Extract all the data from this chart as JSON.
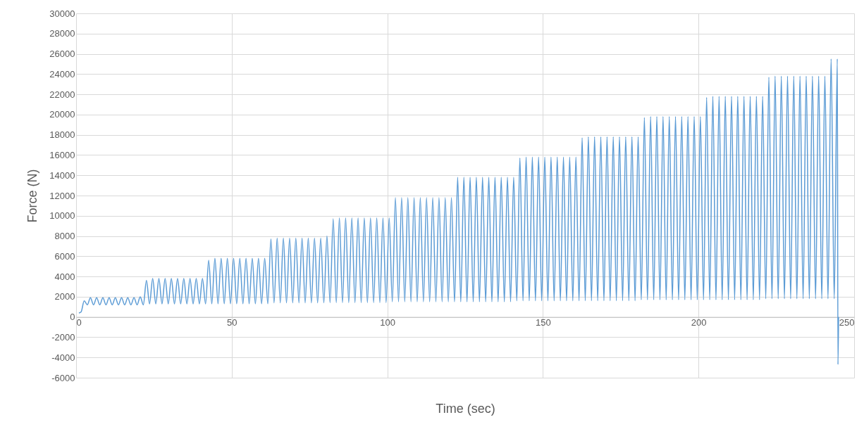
{
  "chart_data": {
    "type": "line",
    "xlabel": "Time (sec)",
    "ylabel": "Force (N)",
    "xlim": [
      0,
      250
    ],
    "xticks": [
      0,
      50,
      100,
      150,
      200,
      250
    ],
    "ylim": [
      -6000,
      30000
    ],
    "yticks": [
      -6000,
      -4000,
      -2000,
      0,
      2000,
      4000,
      6000,
      8000,
      10000,
      12000,
      14000,
      16000,
      18000,
      20000,
      22000,
      24000,
      26000,
      28000,
      30000
    ],
    "grid": true,
    "marker": "none",
    "line_style": "solid",
    "series": [
      {
        "color": "#5b9bd5",
        "x": [
          0.9,
          1.6,
          2.6,
          3.6,
          4.6,
          5.6,
          6.6,
          7.6,
          8.6,
          9.6,
          10.6,
          11.6,
          12.6,
          13.6,
          14.6,
          15.6,
          16.6,
          17.6,
          18.6,
          19.6,
          20.6,
          21.6,
          22.6,
          23.6,
          24.6,
          25.6,
          26.6,
          27.6,
          28.6,
          29.6,
          30.6,
          31.6,
          32.6,
          33.6,
          34.6,
          35.6,
          36.6,
          37.6,
          38.6,
          39.6,
          40.6,
          41.6,
          42.6,
          43.6,
          44.6,
          45.6,
          46.6,
          47.6,
          48.6,
          49.6,
          50.6,
          51.6,
          52.6,
          53.6,
          54.6,
          55.6,
          56.6,
          57.6,
          58.6,
          59.6,
          60.6,
          61.6,
          62.6,
          63.6,
          64.6,
          65.6,
          66.6,
          67.6,
          68.6,
          69.6,
          70.6,
          71.6,
          72.6,
          73.6,
          74.6,
          75.6,
          76.6,
          77.6,
          78.6,
          79.6,
          80.6,
          81.6,
          82.6,
          83.6,
          84.6,
          85.6,
          86.6,
          87.6,
          88.6,
          89.6,
          90.6,
          91.6,
          92.6,
          93.6,
          94.6,
          95.6,
          96.6,
          97.6,
          98.6,
          99.6,
          100.6,
          101.6,
          102.6,
          103.6,
          104.6,
          105.6,
          106.6,
          107.6,
          108.6,
          109.6,
          110.6,
          111.6,
          112.6,
          113.6,
          114.6,
          115.6,
          116.6,
          117.6,
          118.6,
          119.6,
          120.6,
          121.6,
          122.6,
          123.6,
          124.6,
          125.6,
          126.6,
          127.6,
          128.6,
          129.6,
          130.6,
          131.6,
          132.6,
          133.6,
          134.6,
          135.6,
          136.6,
          137.6,
          138.6,
          139.6,
          140.6,
          141.6,
          142.6,
          143.6,
          144.6,
          145.6,
          146.6,
          147.6,
          148.6,
          149.6,
          150.6,
          151.6,
          152.6,
          153.6,
          154.6,
          155.6,
          156.6,
          157.6,
          158.6,
          159.6,
          160.6,
          161.6,
          162.6,
          163.6,
          164.6,
          165.6,
          166.6,
          167.6,
          168.6,
          169.6,
          170.6,
          171.6,
          172.6,
          173.6,
          174.6,
          175.6,
          176.6,
          177.6,
          178.6,
          179.6,
          180.6,
          181.6,
          182.6,
          183.6,
          184.6,
          185.6,
          186.6,
          187.6,
          188.6,
          189.6,
          190.6,
          191.6,
          192.6,
          193.6,
          194.6,
          195.6,
          196.6,
          197.6,
          198.6,
          199.6,
          200.6,
          201.6,
          202.6,
          203.6,
          204.6,
          205.6,
          206.6,
          207.6,
          208.6,
          209.6,
          210.6,
          211.6,
          212.6,
          213.6,
          214.6,
          215.6,
          216.6,
          217.6,
          218.6,
          219.6,
          220.6,
          221.6,
          222.6,
          223.6,
          224.6,
          225.6,
          226.6,
          227.6,
          228.6,
          229.6,
          230.6,
          231.6,
          232.6,
          233.6,
          234.6,
          235.6,
          236.6,
          237.6,
          238.6,
          239.6,
          240.6,
          241.6,
          242.6,
          243.6,
          244.6,
          244.8,
          245.0
        ],
        "values": [
          400,
          500,
          1600,
          1200,
          1900,
          1200,
          1900,
          1200,
          1900,
          1200,
          1900,
          1200,
          1900,
          1200,
          1900,
          1200,
          1900,
          1200,
          1900,
          1200,
          2000,
          1200,
          3600,
          1300,
          3800,
          1300,
          3800,
          1300,
          3800,
          1300,
          3800,
          1300,
          3800,
          1300,
          3800,
          1300,
          3800,
          1300,
          3800,
          1300,
          3800,
          1300,
          5600,
          1300,
          5800,
          1300,
          5800,
          1300,
          5800,
          1300,
          5800,
          1300,
          5800,
          1300,
          5800,
          1300,
          5800,
          1300,
          5800,
          1300,
          5800,
          1300,
          7700,
          1400,
          7800,
          1400,
          7800,
          1400,
          7800,
          1400,
          7800,
          1400,
          7800,
          1400,
          7800,
          1400,
          7800,
          1400,
          7800,
          1400,
          8000,
          1400,
          9700,
          1400,
          9800,
          1400,
          9800,
          1400,
          9800,
          1400,
          9800,
          1400,
          9800,
          1400,
          9800,
          1400,
          9800,
          1400,
          9800,
          1400,
          9800,
          1500,
          11800,
          1500,
          11800,
          1500,
          11800,
          1500,
          11800,
          1500,
          11800,
          1500,
          11800,
          1500,
          11800,
          1500,
          11800,
          1500,
          11800,
          1500,
          11800,
          1500,
          13800,
          1500,
          13800,
          1500,
          13800,
          1500,
          13800,
          1500,
          13800,
          1500,
          13800,
          1500,
          13800,
          1500,
          13800,
          1500,
          13800,
          1500,
          13800,
          1600,
          15700,
          1600,
          15800,
          1600,
          15800,
          1600,
          15800,
          1600,
          15800,
          1600,
          15800,
          1600,
          15800,
          1600,
          15800,
          1600,
          15800,
          1600,
          15800,
          1600,
          17700,
          1600,
          17800,
          1600,
          17800,
          1600,
          17800,
          1600,
          17800,
          1600,
          17800,
          1600,
          17800,
          1600,
          17800,
          1600,
          17800,
          1600,
          17800,
          1700,
          19700,
          1700,
          19800,
          1700,
          19800,
          1700,
          19800,
          1700,
          19800,
          1700,
          19800,
          1700,
          19800,
          1700,
          19800,
          1700,
          19800,
          1700,
          19800,
          1700,
          21700,
          1700,
          21800,
          1700,
          21800,
          1700,
          21800,
          1700,
          21800,
          1700,
          21800,
          1700,
          21800,
          1700,
          21800,
          1700,
          21800,
          1700,
          21800,
          1800,
          23700,
          1800,
          23800,
          1800,
          23800,
          1800,
          23800,
          1800,
          23800,
          1800,
          23800,
          1800,
          23800,
          1800,
          23800,
          1800,
          23800,
          1800,
          23800,
          1800,
          25500,
          1800,
          25500,
          -4700,
          0
        ]
      }
    ]
  }
}
